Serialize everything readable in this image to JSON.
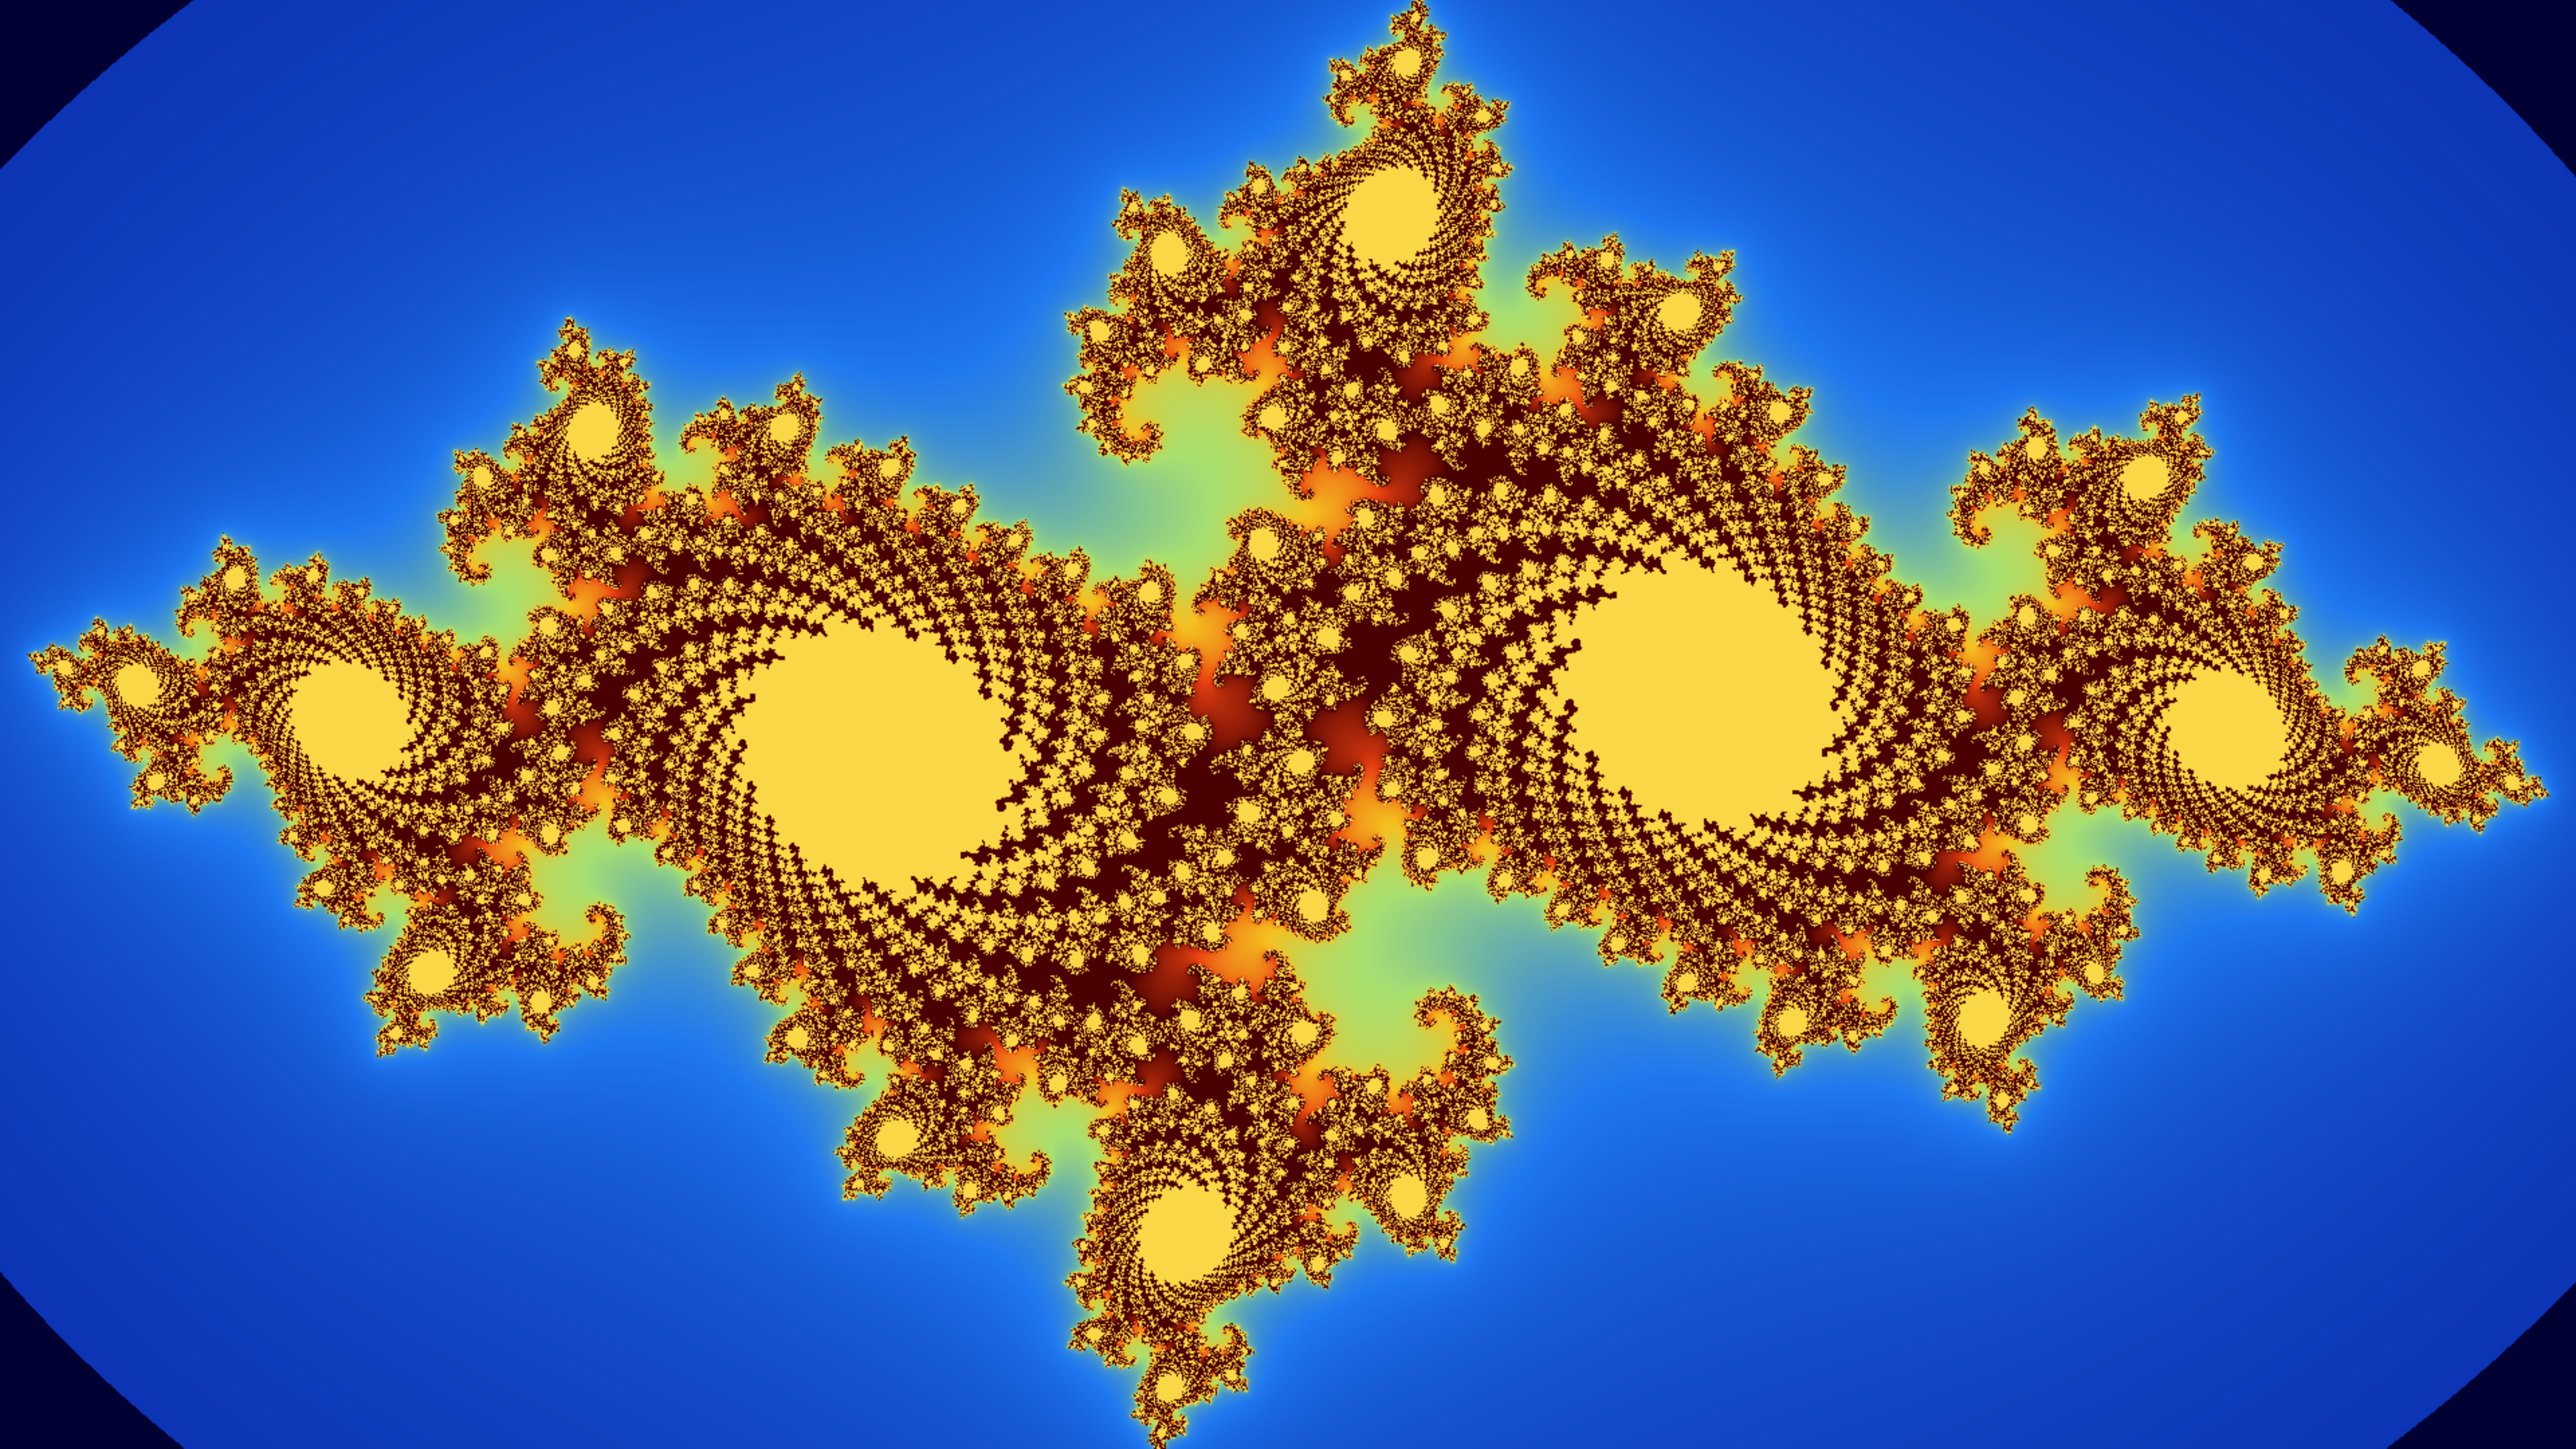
{
  "image": {
    "subject": "julia-set-fractal",
    "fractal": {
      "type": "julia",
      "c_re": -0.7269,
      "c_im": 0.1889,
      "max_iterations": 220
    },
    "colors": {
      "background": "#000033",
      "outer_glow": "#04169a",
      "inner_glow": "#1f78f0",
      "filament_light": "#a8e070",
      "filament_mid": "#f5c020",
      "filament_hot": "#e84010",
      "core": "#4a0000"
    }
  }
}
